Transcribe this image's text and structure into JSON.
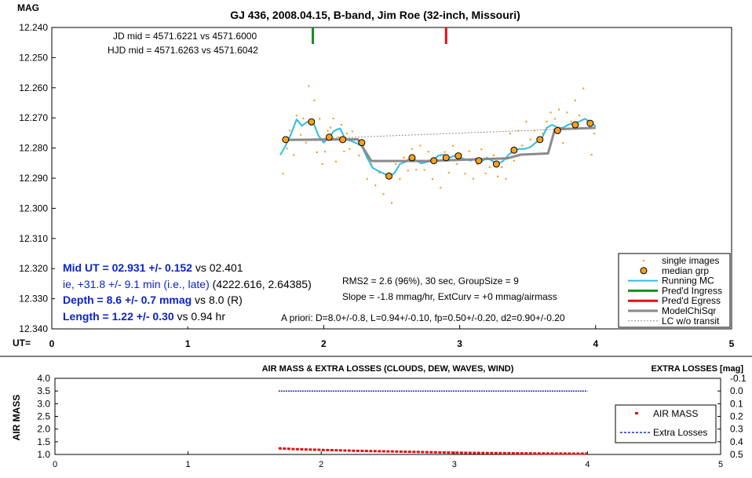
{
  "chart_data": [
    {
      "type": "scatter",
      "title": "GJ 436, 2008.04.15, B-band, Jim Roe (32-inch, Missouri)",
      "ylabel": "MAG",
      "xlabel": "UT=",
      "xlim": [
        0,
        5
      ],
      "ylim": [
        12.24,
        12.34
      ],
      "y_inverted": true,
      "grid": false,
      "x_ticks": [
        "0",
        "1",
        "2",
        "3",
        "4",
        "5"
      ],
      "y_ticks": [
        "12.240",
        "12.250",
        "12.260",
        "12.270",
        "12.280",
        "12.290",
        "12.300",
        "12.310",
        "12.320",
        "12.330",
        "12.340"
      ],
      "info_top": [
        "JD mid = 4571.6221 vs 4571.6000",
        "HJD mid = 4571.6263 vs 4571.6042"
      ],
      "stats": [
        "RMS2 = 2.6 (96%), 30 sec, GroupSize = 9",
        "Slope = -1.8 mmag/hr, ExtCurv = +0 mmag/airmass"
      ],
      "apriori": "A priori:  D=8.0+/-0.8, L=0.94+/-0.10, fp=0.50+/-0.20, d2=0.90+/-0.20",
      "results": {
        "mid_ut": "Mid UT = 02.931 +/- 0.152",
        "mid_ut_vs": " vs 02.401",
        "ie": "ie, +31.8 +/- 9.1 min (i.e., late)",
        "ie_extra": " (4222.616, 2.64385)",
        "depth": "Depth = 8.6 +/- 0.7 mmag",
        "depth_vs": " vs 8.0 (R)",
        "length": "Length = 1.22 +/- 0.30",
        "length_vs": "  vs 0.94 hr"
      },
      "legend_position": "bottom-right",
      "legend": [
        "single images",
        "median grp",
        "Running MC",
        "Pred'd Ingress",
        "Pred'd Egress",
        "ModelChiSqr",
        "LC w/o transit"
      ],
      "colors": {
        "single": "#ff8c00",
        "median_fill": "#ff9f1c",
        "running": "#2ebce6",
        "ingress": "#148f1c",
        "egress": "#e01010",
        "model": "#8a8a8a",
        "lc_wo": "#8a8a8a"
      },
      "predicted_ingress": 1.92,
      "predicted_egress": 2.9,
      "series": [
        {
          "name": "median grp",
          "x": [
            1.72,
            1.91,
            2.04,
            2.14,
            2.28,
            2.48,
            2.65,
            2.81,
            2.9,
            2.99,
            3.14,
            3.27,
            3.4,
            3.59,
            3.72,
            3.85,
            3.96
          ],
          "y": [
            12.2772,
            12.2713,
            12.2764,
            12.2772,
            12.2782,
            12.2893,
            12.2832,
            12.2842,
            12.2832,
            12.2826,
            12.2842,
            12.2853,
            12.2807,
            12.2772,
            12.2742,
            12.2723,
            12.2718
          ]
        },
        {
          "name": "Running MC",
          "x": [
            1.68,
            1.72,
            1.76,
            1.8,
            1.84,
            1.88,
            1.92,
            1.96,
            2.0,
            2.04,
            2.08,
            2.12,
            2.16,
            2.2,
            2.24,
            2.28,
            2.32,
            2.36,
            2.4,
            2.44,
            2.48,
            2.52,
            2.56,
            2.6,
            2.64,
            2.68,
            2.72,
            2.76,
            2.8,
            2.84,
            2.88,
            2.92,
            2.96,
            3.0,
            3.04,
            3.08,
            3.12,
            3.16,
            3.2,
            3.24,
            3.28,
            3.32,
            3.36,
            3.4,
            3.44,
            3.48,
            3.52,
            3.56,
            3.6,
            3.64,
            3.68,
            3.72,
            3.76,
            3.8,
            3.84,
            3.88,
            3.92,
            3.96,
            4.0
          ],
          "y": [
            12.2823,
            12.2792,
            12.2753,
            12.2705,
            12.2726,
            12.2713,
            12.2711,
            12.2758,
            12.2782,
            12.2763,
            12.2742,
            12.2735,
            12.2772,
            12.2776,
            12.2784,
            12.2793,
            12.2833,
            12.2866,
            12.2876,
            12.2884,
            12.2894,
            12.2883,
            12.2853,
            12.2846,
            12.2832,
            12.2842,
            12.2851,
            12.2846,
            12.2843,
            12.2826,
            12.2822,
            12.2833,
            12.2826,
            12.2832,
            12.2837,
            12.2842,
            12.2835,
            12.2845,
            12.2832,
            12.2843,
            12.2853,
            12.2843,
            12.2822,
            12.2808,
            12.2803,
            12.2803,
            12.2797,
            12.2782,
            12.2773,
            12.2733,
            12.2723,
            12.2732,
            12.2733,
            12.2722,
            12.2718,
            12.2712,
            12.2703,
            12.2712,
            12.2728
          ]
        },
        {
          "name": "ModelChiSqr",
          "x": [
            1.72,
            2.25,
            2.35,
            2.75,
            3.35,
            3.45,
            3.65,
            3.7,
            4.0
          ],
          "y": [
            12.2773,
            12.2771,
            12.2843,
            12.2843,
            12.2834,
            12.2822,
            12.2818,
            12.2738,
            12.2733
          ]
        },
        {
          "name": "LC w/o transit",
          "x": [
            1.72,
            4.0
          ],
          "y": [
            12.2773,
            12.2733
          ]
        },
        {
          "name": "single images",
          "x": [
            1.7,
            1.73,
            1.75,
            1.78,
            1.8,
            1.83,
            1.85,
            1.87,
            1.89,
            1.91,
            1.93,
            1.95,
            1.97,
            1.99,
            2.01,
            2.03,
            2.05,
            2.07,
            2.09,
            2.11,
            2.13,
            2.15,
            2.17,
            2.19,
            2.21,
            2.23,
            2.26,
            2.29,
            2.32,
            2.35,
            2.38,
            2.41,
            2.44,
            2.47,
            2.5,
            2.53,
            2.56,
            2.59,
            2.62,
            2.65,
            2.68,
            2.71,
            2.74,
            2.77,
            2.8,
            2.83,
            2.86,
            2.89,
            2.92,
            2.95,
            2.98,
            3.01,
            3.04,
            3.07,
            3.1,
            3.13,
            3.16,
            3.19,
            3.22,
            3.25,
            3.28,
            3.31,
            3.34,
            3.37,
            3.4,
            3.43,
            3.46,
            3.49,
            3.52,
            3.55,
            3.58,
            3.61,
            3.64,
            3.67,
            3.7,
            3.73,
            3.76,
            3.79,
            3.82,
            3.85,
            3.88,
            3.91,
            3.94,
            3.97,
            3.99
          ],
          "y": [
            12.2885,
            12.2801,
            12.2742,
            12.2823,
            12.2692,
            12.2756,
            12.2702,
            12.2782,
            12.2594,
            12.2723,
            12.2642,
            12.2814,
            12.2703,
            12.2853,
            12.2812,
            12.2743,
            12.2732,
            12.2702,
            12.2845,
            12.2764,
            12.2723,
            12.2811,
            12.2752,
            12.2803,
            12.2745,
            12.2771,
            12.2825,
            12.2794,
            12.2903,
            12.2853,
            12.2924,
            12.2882,
            12.2953,
            12.2843,
            12.2982,
            12.2853,
            12.2902,
            12.2832,
            12.2875,
            12.2803,
            12.2872,
            12.2792,
            12.2873,
            12.2812,
            12.2903,
            12.2843,
            12.2932,
            12.2813,
            12.2882,
            12.2793,
            12.2853,
            12.2822,
            12.2885,
            12.2811,
            12.2902,
            12.2853,
            12.2804,
            12.2884,
            12.2863,
            12.2824,
            12.2894,
            12.2863,
            12.2902,
            12.2752,
            12.2842,
            12.2743,
            12.2792,
            12.2712,
            12.2772,
            12.2742,
            12.2773,
            12.2752,
            12.2712,
            12.2682,
            12.2703,
            12.2672,
            12.2783,
            12.2682,
            12.2712,
            12.2642,
            12.2692,
            12.2602,
            12.2712,
            12.2822,
            12.2752
          ]
        }
      ]
    },
    {
      "type": "line",
      "title": "AIR MASS & EXTRA LOSSES (CLOUDS, DEW, WAVES, WIND)",
      "ylabel": "AIR MASS",
      "y2label": "EXTRA LOSSES [mag]",
      "xlim": [
        0,
        5
      ],
      "ylim": [
        1.0,
        4.0
      ],
      "y2lim": [
        -0.1,
        0.5
      ],
      "x_ticks": [
        "0",
        "1",
        "2",
        "3",
        "4",
        "5"
      ],
      "y_ticks": [
        "1.0",
        "1.5",
        "2.0",
        "2.5",
        "3.0",
        "3.5",
        "4.0"
      ],
      "y2_ticks": [
        "-0.1",
        "0.0",
        "0.1",
        "0.2",
        "0.3",
        "0.4",
        "0.5"
      ],
      "legend_position": "bottom-right",
      "legend": [
        "AIR MASS",
        "Extra Losses"
      ],
      "colors": {
        "airmass": "#e01010",
        "extra": "#1a2fc0"
      },
      "series": [
        {
          "name": "AIR MASS",
          "x": [
            1.68,
            1.8,
            2.0,
            2.2,
            2.4,
            2.6,
            2.8,
            3.0,
            3.2,
            3.4,
            3.6,
            3.8,
            4.0
          ],
          "y": [
            1.24,
            1.21,
            1.18,
            1.15,
            1.13,
            1.11,
            1.09,
            1.07,
            1.06,
            1.05,
            1.04,
            1.035,
            1.03
          ]
        },
        {
          "name": "Extra Losses",
          "x": [
            1.68,
            4.0
          ],
          "y": [
            0.0,
            0.0
          ]
        }
      ]
    }
  ]
}
